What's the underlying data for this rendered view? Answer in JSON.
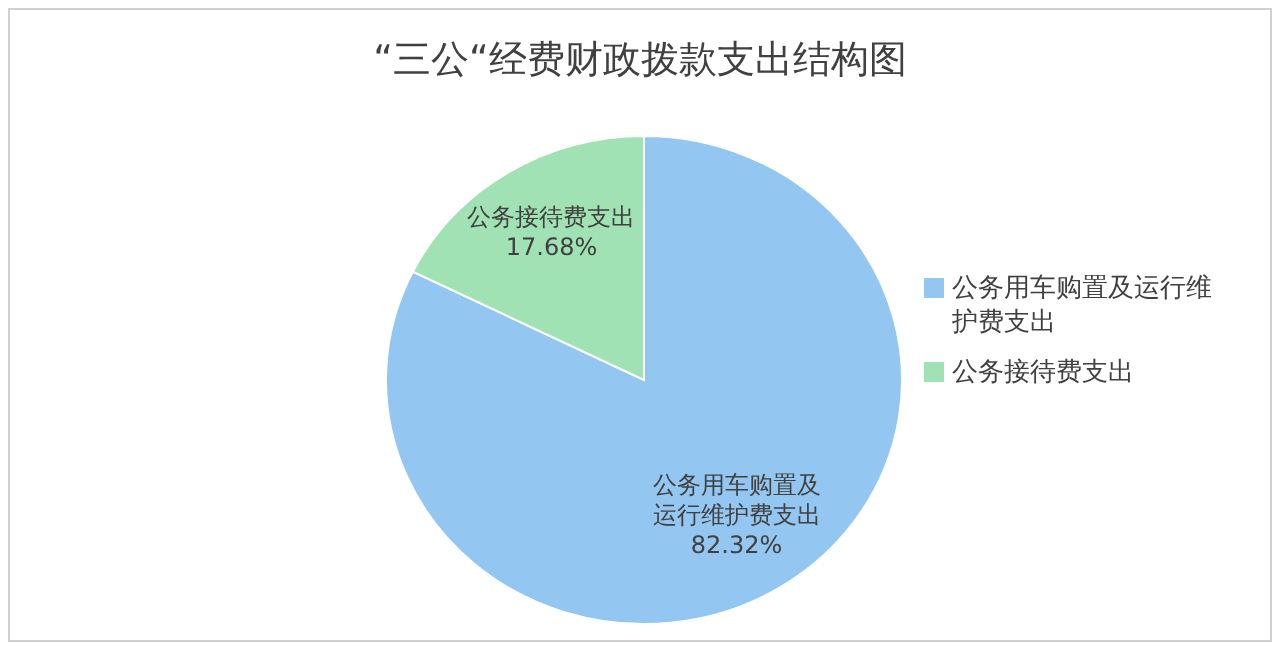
{
  "chart_data": {
    "type": "pie",
    "title": "“三公“经费财政拨款支出结构图",
    "categories": [
      "公务用车购置及运行维护费支出",
      "公务接待费支出"
    ],
    "values": [
      82.32,
      17.68
    ],
    "colors": [
      "#93c7f1",
      "#a1e2b4"
    ],
    "value_labels": [
      "82.32%",
      "17.68%"
    ],
    "legend": "right"
  }
}
